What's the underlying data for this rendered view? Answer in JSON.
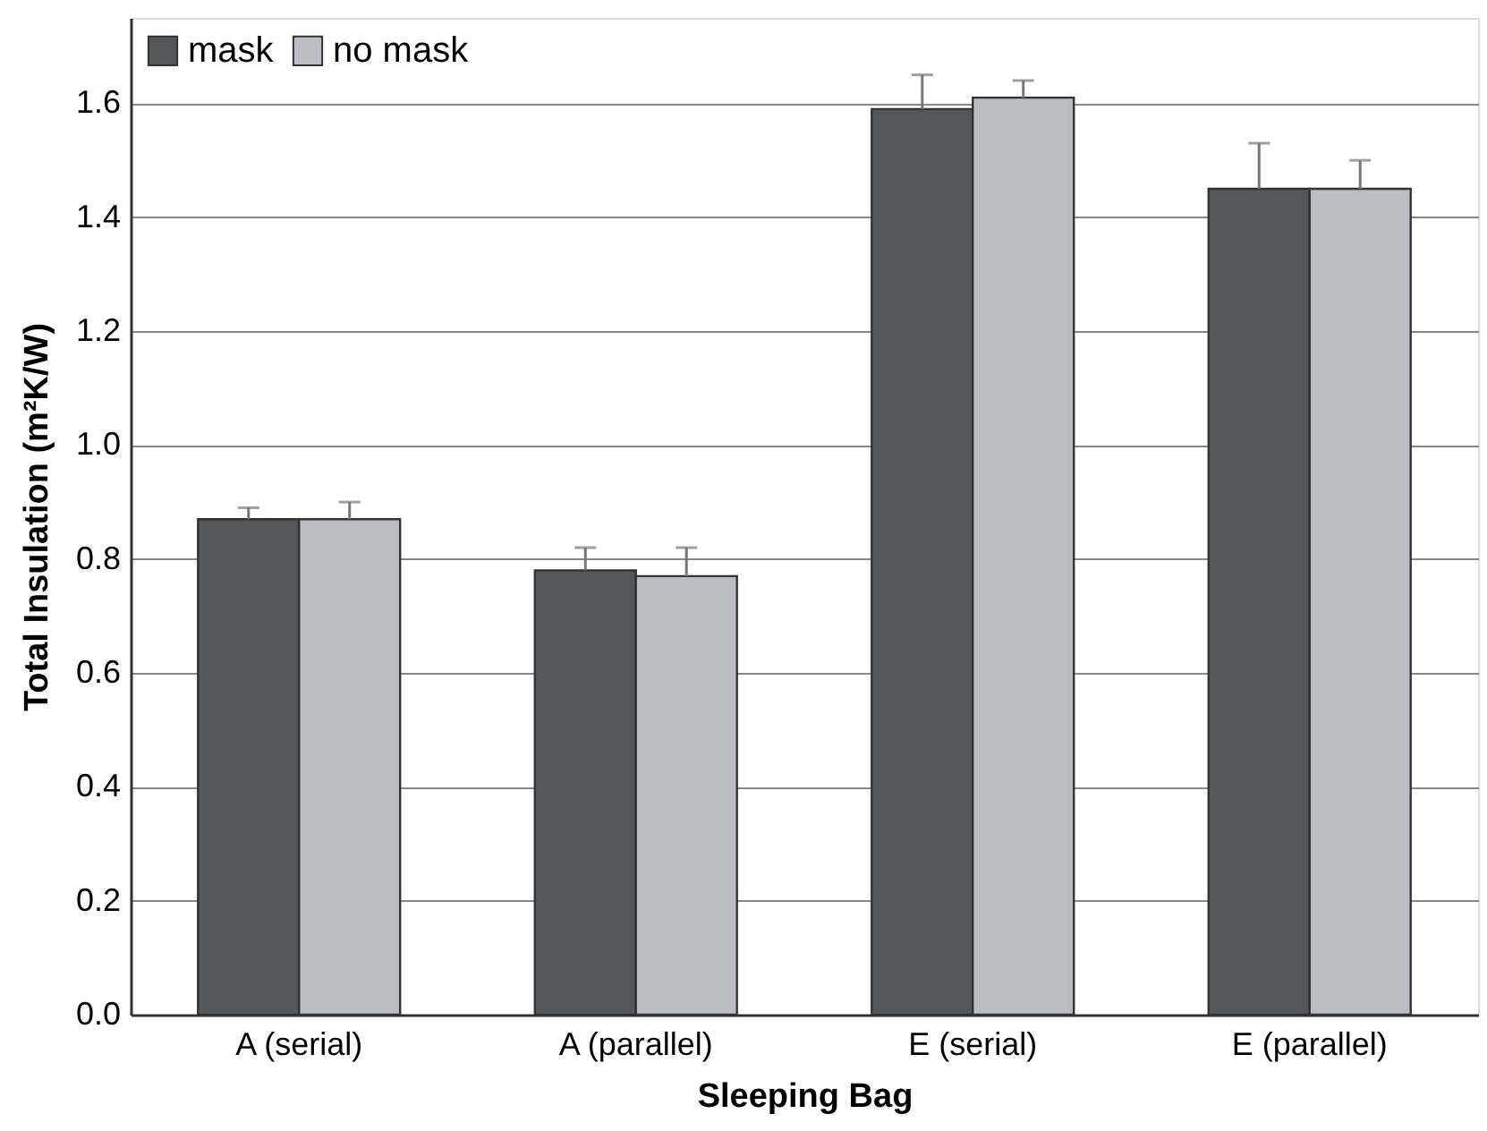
{
  "chart_data": {
    "type": "bar",
    "xlabel": "Sleeping Bag",
    "ylabel": "Total Insulation (m²K/W)",
    "categories": [
      "A (serial)",
      "A (parallel)",
      "E (serial)",
      "E (parallel)"
    ],
    "series": [
      {
        "name": "mask",
        "color": "#555658",
        "values": [
          0.87,
          0.78,
          1.59,
          1.45
        ],
        "errors": [
          [
            0.87,
            0.89
          ],
          [
            0.78,
            0.82
          ],
          [
            1.59,
            1.65
          ],
          [
            1.45,
            1.53
          ]
        ]
      },
      {
        "name": "no mask",
        "color": "#bcbdc0",
        "values": [
          0.87,
          0.77,
          1.61,
          1.45
        ],
        "errors": [
          [
            0.87,
            0.9
          ],
          [
            0.77,
            0.82
          ],
          [
            1.61,
            1.64
          ],
          [
            1.45,
            1.5
          ]
        ]
      }
    ],
    "ylim": [
      0,
      1.75
    ],
    "yticks": [
      {
        "value": 0,
        "label": "0.0"
      },
      0.2,
      0.4,
      0.6,
      0.8,
      {
        "value": 1,
        "label": "1.0"
      },
      1.2,
      1.4,
      1.6
    ],
    "grid": "y",
    "legend": "top left"
  }
}
